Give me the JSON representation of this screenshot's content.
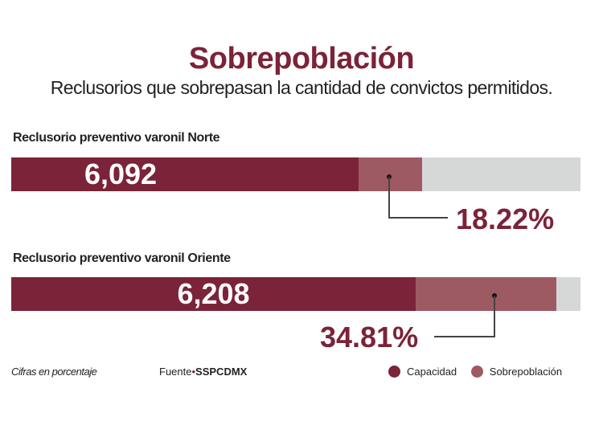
{
  "title": "Sobrepoblación",
  "subtitle": "Reclusorios que sobrepasan la cantidad de convictos permitidos.",
  "colors": {
    "capacidad": "#7b2338",
    "sobrepoblacion": "#9e5a63",
    "track": "#d6d7d7"
  },
  "chart_data": {
    "type": "bar",
    "title": "Sobrepoblación",
    "categories": [
      "Reclusorio preventivo varonil Norte",
      "Reclusorio preventivo varonil Oriente"
    ],
    "series": [
      {
        "name": "Capacidad",
        "values": [
          6092,
          6208
        ],
        "labels": [
          "6,092",
          "6,208"
        ]
      },
      {
        "name": "Sobrepoblación",
        "values": [
          18.22,
          34.81
        ],
        "labels": [
          "18.22%",
          "34.81%"
        ]
      }
    ]
  },
  "footer": {
    "note": "Cifras en porcentaje",
    "source_prefix": "Fuente",
    "source": "SSPCDMX"
  },
  "legend": [
    {
      "label": "Capacidad"
    },
    {
      "label": "Sobrepoblación"
    }
  ]
}
